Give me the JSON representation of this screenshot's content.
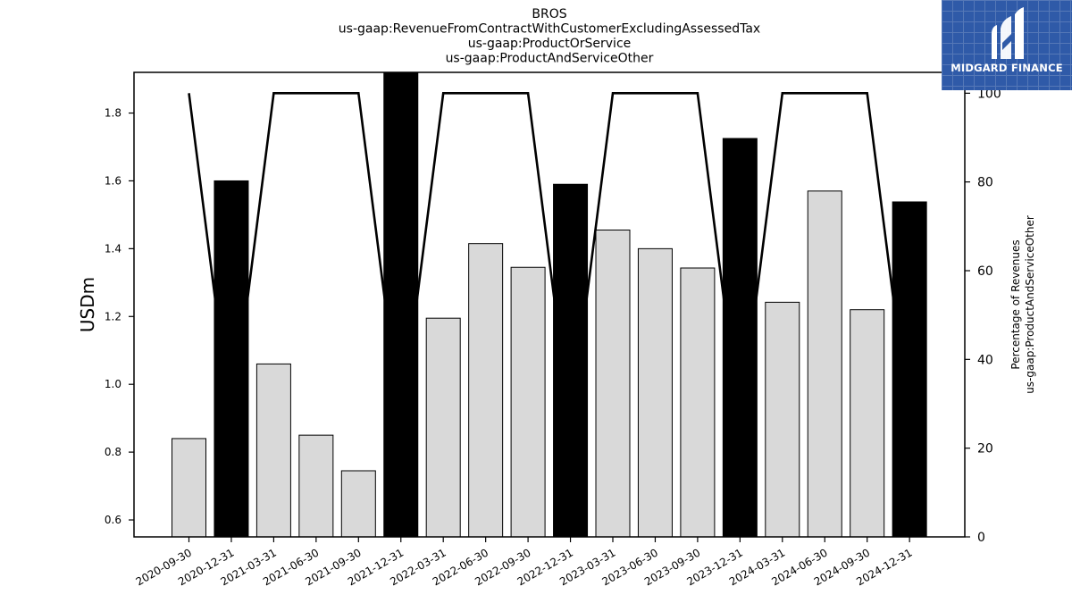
{
  "chart_data": {
    "type": "bar",
    "title_lines": [
      "BROS",
      "us-gaap:RevenueFromContractWithCustomerExcludingAssessedTax",
      "us-gaap:ProductOrService",
      "us-gaap:ProductAndServiceOther"
    ],
    "categories": [
      "2020-09-30",
      "2020-12-31",
      "2021-03-31",
      "2021-06-30",
      "2021-09-30",
      "2021-12-31",
      "2022-03-31",
      "2022-06-30",
      "2022-09-30",
      "2022-12-31",
      "2023-03-31",
      "2023-06-30",
      "2023-09-30",
      "2023-12-31",
      "2024-03-31",
      "2024-06-30",
      "2024-09-30",
      "2024-12-31"
    ],
    "series": [
      {
        "axis": "left",
        "values": [
          0.84,
          1.6,
          1.06,
          0.85,
          0.745,
          1.93,
          1.195,
          1.415,
          1.345,
          1.59,
          1.455,
          1.4,
          1.343,
          1.725,
          1.242,
          1.57,
          1.22,
          1.538
        ],
        "bar_colors": [
          "#d9d9d9",
          "#000000",
          "#d9d9d9",
          "#d9d9d9",
          "#d9d9d9",
          "#000000",
          "#d9d9d9",
          "#d9d9d9",
          "#d9d9d9",
          "#000000",
          "#d9d9d9",
          "#d9d9d9",
          "#d9d9d9",
          "#000000",
          "#d9d9d9",
          "#d9d9d9",
          "#d9d9d9",
          "#000000"
        ]
      },
      {
        "axis": "right",
        "type": "line",
        "values": [
          100,
          25,
          100,
          100,
          100,
          25,
          100,
          100,
          100,
          25,
          100,
          100,
          100,
          25,
          100,
          100,
          100,
          25
        ],
        "color": "#000000"
      }
    ],
    "ylabel": "USDm",
    "ylim": [
      0.55,
      1.92
    ],
    "yticks": [
      0.6,
      0.8,
      1.0,
      1.2,
      1.4,
      1.6,
      1.8
    ],
    "y2label_lines": [
      "Percentage of Revenues",
      "us-gaap:ProductAndServiceOther"
    ],
    "y2lim": [
      0,
      104.7
    ],
    "y2ticks": [
      0,
      20,
      40,
      60,
      80,
      100
    ],
    "grid": false
  },
  "logo": {
    "text": "MIDGARD FINANCE",
    "color": "#2f5aa8"
  }
}
